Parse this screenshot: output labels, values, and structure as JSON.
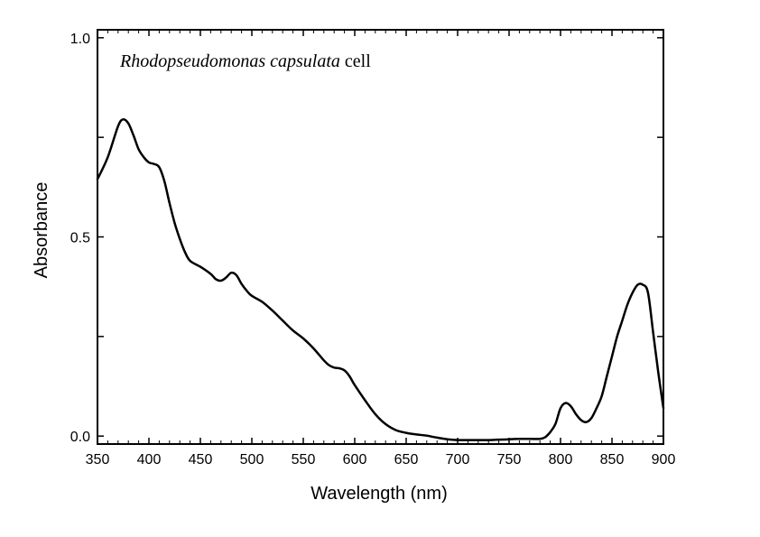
{
  "chart_data": {
    "type": "line",
    "title": "",
    "annotation": {
      "italic_part": "Rhodopseudomonas capsulata",
      "plain_part": " cell"
    },
    "xlabel": "Wavelength (nm)",
    "ylabel": "Absorbance",
    "xlim": [
      350,
      900
    ],
    "ylim": [
      -0.02,
      1.02
    ],
    "x_ticks": [
      350,
      400,
      450,
      500,
      550,
      600,
      650,
      700,
      750,
      800,
      850,
      900
    ],
    "x_tick_labels": [
      "350",
      "400",
      "450",
      "500",
      "550",
      "600",
      "650",
      "700",
      "750",
      "800",
      "850",
      "900"
    ],
    "y_ticks": [
      0.0,
      0.5,
      1.0
    ],
    "y_tick_labels": [
      "0.0",
      "0.5",
      "1.0"
    ],
    "y_minor_ticks": [
      0.25,
      0.75
    ],
    "grid": false,
    "series": [
      {
        "color": "#000000",
        "x": [
          350,
          360,
          370,
          375,
          380,
          385,
          390,
          395,
          400,
          405,
          410,
          415,
          420,
          425,
          430,
          435,
          440,
          450,
          460,
          465,
          470,
          475,
          480,
          485,
          490,
          495,
          500,
          510,
          520,
          530,
          540,
          550,
          560,
          570,
          575,
          580,
          585,
          590,
          595,
          600,
          610,
          620,
          630,
          640,
          650,
          660,
          670,
          680,
          690,
          700,
          710,
          720,
          730,
          740,
          750,
          760,
          770,
          780,
          785,
          790,
          795,
          800,
          805,
          810,
          815,
          820,
          825,
          830,
          835,
          840,
          845,
          850,
          855,
          860,
          865,
          870,
          875,
          880,
          885,
          890,
          895,
          900
        ],
        "y": [
          0.645,
          0.7,
          0.778,
          0.795,
          0.785,
          0.755,
          0.72,
          0.7,
          0.687,
          0.683,
          0.675,
          0.64,
          0.585,
          0.535,
          0.495,
          0.462,
          0.44,
          0.425,
          0.407,
          0.394,
          0.39,
          0.398,
          0.41,
          0.404,
          0.382,
          0.365,
          0.352,
          0.337,
          0.315,
          0.29,
          0.265,
          0.245,
          0.22,
          0.19,
          0.178,
          0.172,
          0.17,
          0.165,
          0.15,
          0.128,
          0.09,
          0.055,
          0.03,
          0.015,
          0.008,
          0.004,
          0.001,
          -0.004,
          -0.008,
          -0.01,
          -0.01,
          -0.01,
          -0.01,
          -0.009,
          -0.008,
          -0.007,
          -0.007,
          -0.007,
          -0.003,
          0.01,
          0.03,
          0.07,
          0.083,
          0.075,
          0.055,
          0.04,
          0.035,
          0.045,
          0.07,
          0.1,
          0.15,
          0.2,
          0.25,
          0.29,
          0.33,
          0.36,
          0.38,
          0.38,
          0.36,
          0.26,
          0.16,
          0.07
        ]
      }
    ]
  }
}
